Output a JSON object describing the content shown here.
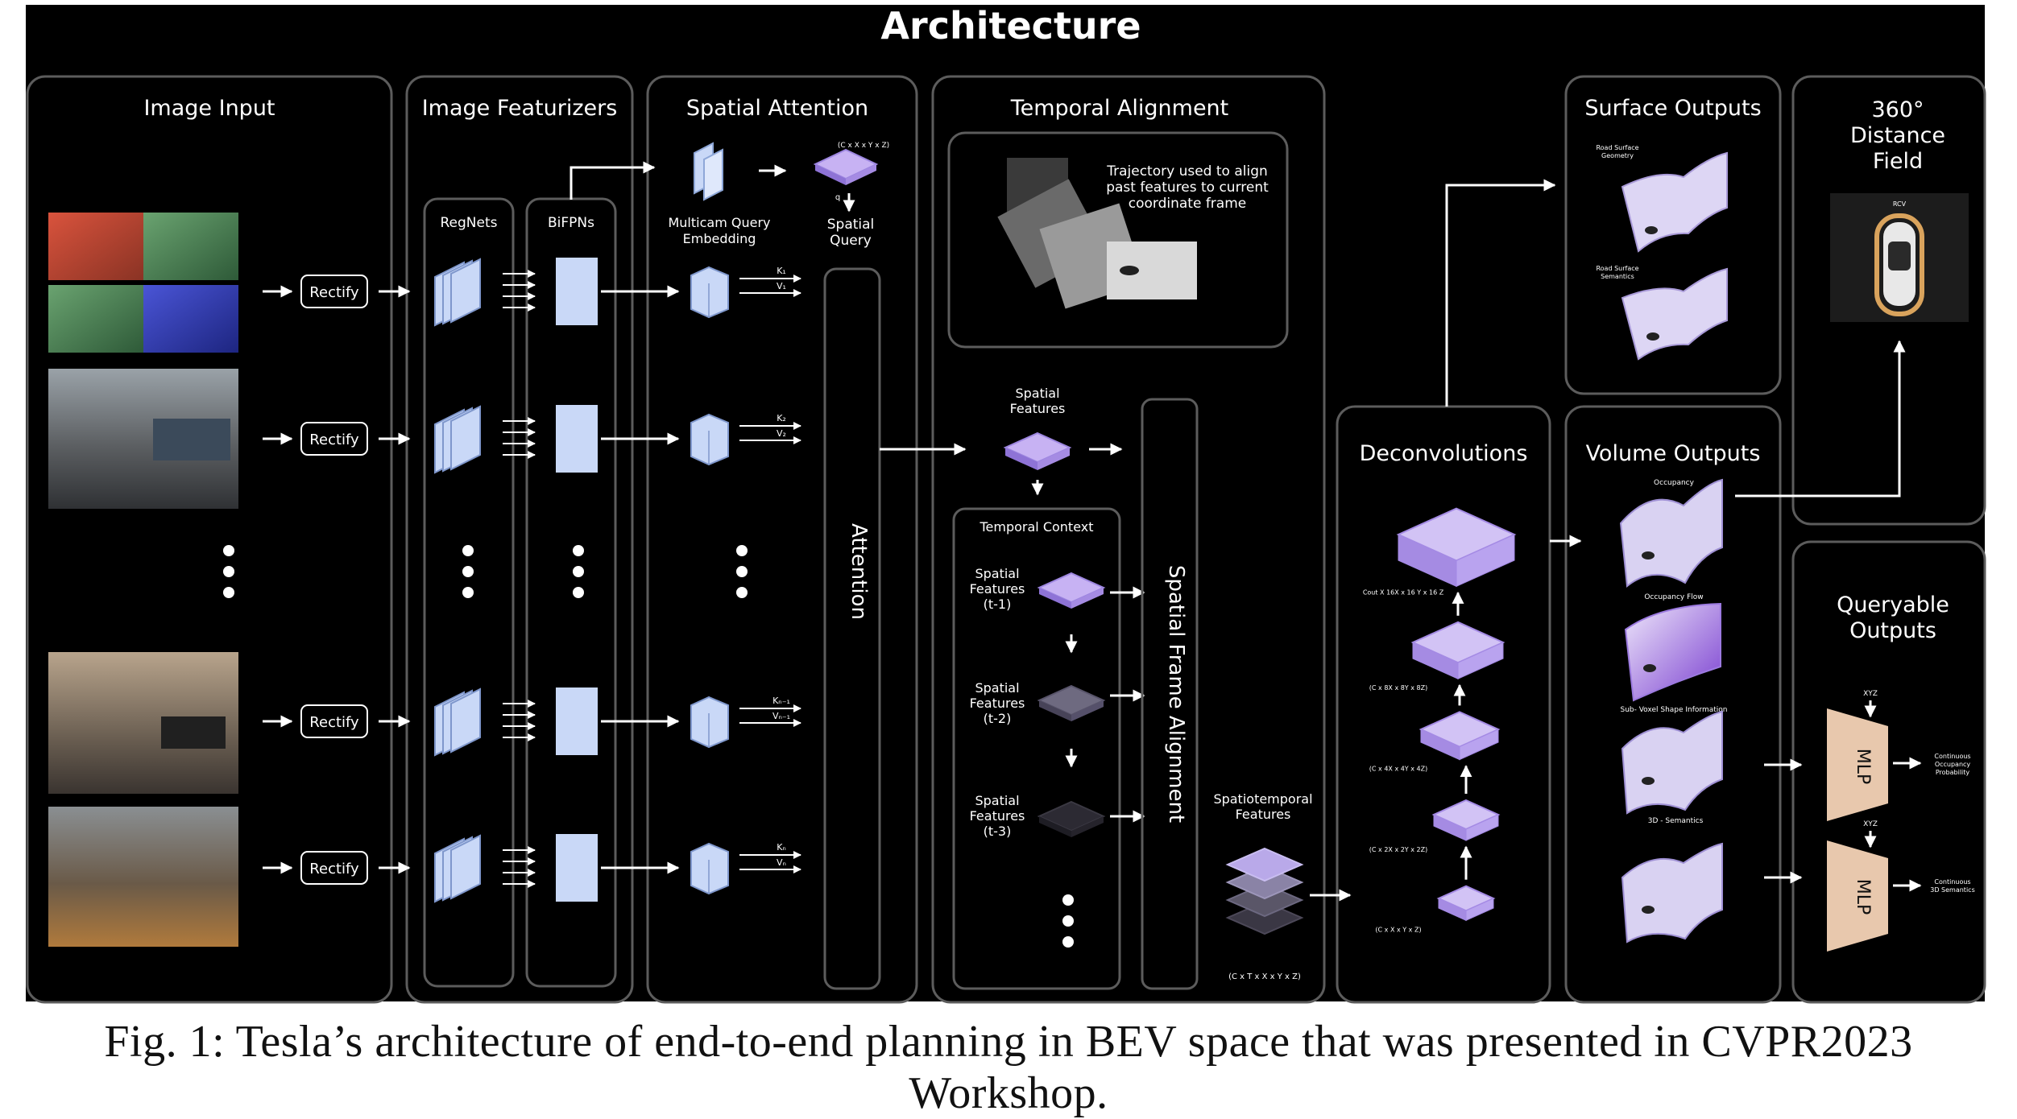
{
  "title": "Architecture",
  "caption": "Fig. 1: Tesla’s architecture of end-to-end planning in BEV space that was presented in CVPR2023 Workshop.",
  "panels": {
    "image_input": "Image Input",
    "image_featurizers": "Image Featurizers",
    "spatial_attention": "Spatial Attention",
    "temporal_alignment": "Temporal Alignment",
    "surface_outputs": "Surface Outputs",
    "distance_field": [
      "360°",
      "Distance",
      "Field"
    ],
    "deconvolutions": "Deconvolutions",
    "volume_outputs": "Volume Outputs",
    "queryable_outputs": [
      "Queryable",
      "Outputs"
    ]
  },
  "labels": {
    "rectify": "Rectify",
    "regnets": "RegNets",
    "bifpns": "BiFPNs",
    "multicam_query": [
      "Multicam Query",
      "Embedding"
    ],
    "cube_dims": "(C x X x Y x Z)",
    "spatial_query": [
      "Spatial",
      "Query"
    ],
    "kv": [
      [
        "K₁",
        "V₁"
      ],
      [
        "K₂",
        "V₂"
      ],
      [
        "Kₙ₋₁",
        "Vₙ₋₁"
      ],
      [
        "Kₙ",
        "Vₙ"
      ]
    ],
    "attention": "Attention",
    "trajectory": [
      "Trajectory used to align",
      "past features to current",
      "coordinate frame"
    ],
    "spatial_features": [
      "Spatial",
      "Features"
    ],
    "temporal_context": "Temporal Context",
    "sf_t1": [
      "Spatial",
      "Features",
      "(t-1)"
    ],
    "sf_t2": [
      "Spatial",
      "Features",
      "(t-2)"
    ],
    "sf_t3": [
      "Spatial",
      "Features",
      "(t-3)"
    ],
    "spatial_frame_alignment": "Spatial Frame Alignment",
    "spatiotemporal": [
      "Spatiotemporal",
      "Features"
    ],
    "spatiotemporal_dims": "(C x T x X x Y x Z)",
    "deconv_dims": [
      "Cout X 16X x 16 Y x 16 Z",
      "(C x 8X x 8Y x 8Z)",
      "(C x 4X x 4Y x 4Z)",
      "(C x 2X x 2Y x 2Z)",
      "(C x X x Y x Z)"
    ],
    "road_geometry": [
      "Road Surface",
      "Geometry"
    ],
    "road_semantics": [
      "Road Surface",
      "Semantics"
    ],
    "occupancy": "Occupancy",
    "occupancy_flow": "Occupancy Flow",
    "subvoxel": "Sub- Voxel Shape Information",
    "semantics3d": "3D - Semantics",
    "xyz": "XYZ",
    "mlp": "MLP",
    "continuous_occ": [
      "Continuous",
      "Occupancy",
      "Probability"
    ],
    "continuous_sem": [
      "Continuous",
      "3D Semantics"
    ],
    "rcv": "RCV"
  },
  "colors": {
    "background": "#000000",
    "panel_border": "#5c5c5c",
    "feature_block": "#c9d8f7",
    "voxel_purple": "#b9a3ef",
    "mlp_fill": "#e8c8ad"
  }
}
